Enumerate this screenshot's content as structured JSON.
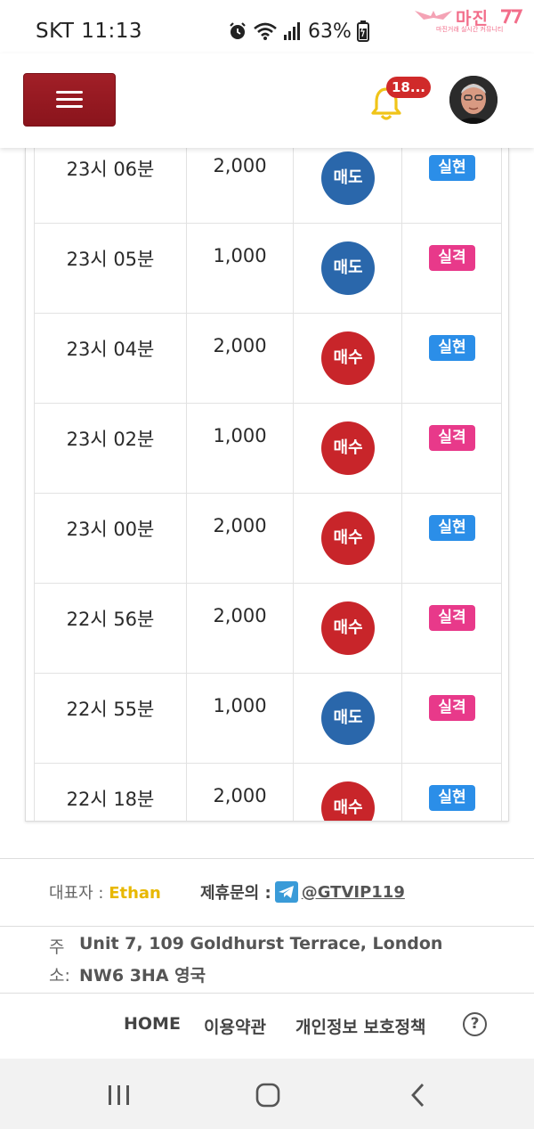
{
  "status_bar": {
    "carrier_time": "SKT 11:13",
    "battery": "63%",
    "icons": [
      "alarm-icon",
      "wifi-icon",
      "signal-icon",
      "battery-icon"
    ]
  },
  "watermark": {
    "text": "마진",
    "sub": "마진거래 실시간 커뮤니티"
  },
  "header": {
    "notification_count": "18...",
    "accent_color": "#9a1a22"
  },
  "trades": {
    "rows": [
      {
        "time": "23시 06분",
        "amount": "2,000",
        "side": "매도",
        "side_type": "sell",
        "result": "실현",
        "result_type": "hit"
      },
      {
        "time": "23시 05분",
        "amount": "1,000",
        "side": "매도",
        "side_type": "sell",
        "result": "실격",
        "result_type": "miss"
      },
      {
        "time": "23시 04분",
        "amount": "2,000",
        "side": "매수",
        "side_type": "buy",
        "result": "실현",
        "result_type": "hit"
      },
      {
        "time": "23시 02분",
        "amount": "1,000",
        "side": "매수",
        "side_type": "buy",
        "result": "실격",
        "result_type": "miss"
      },
      {
        "time": "23시 00분",
        "amount": "2,000",
        "side": "매수",
        "side_type": "buy",
        "result": "실현",
        "result_type": "hit"
      },
      {
        "time": "22시 56분",
        "amount": "2,000",
        "side": "매수",
        "side_type": "buy",
        "result": "실격",
        "result_type": "miss"
      },
      {
        "time": "22시 55분",
        "amount": "1,000",
        "side": "매도",
        "side_type": "sell",
        "result": "실격",
        "result_type": "miss"
      },
      {
        "time": "22시 18분",
        "amount": "2,000",
        "side": "매수",
        "side_type": "buy",
        "result": "실현",
        "result_type": "hit"
      }
    ]
  },
  "footer": {
    "rep_label": "대표자 : ",
    "rep_name": "Ethan",
    "contact_label": "제휴문의 :",
    "contact_handle": "@GTVIP119",
    "addr_label_1": "주",
    "addr_label_2": "소:",
    "addr_line_1": "Unit 7, 109 Goldhurst Terrace, London",
    "addr_line_2": "NW6 3HA 영국",
    "nav": {
      "home": "HOME",
      "terms": "이용약관",
      "privacy": "개인정보 보호정책",
      "help": "?"
    }
  }
}
